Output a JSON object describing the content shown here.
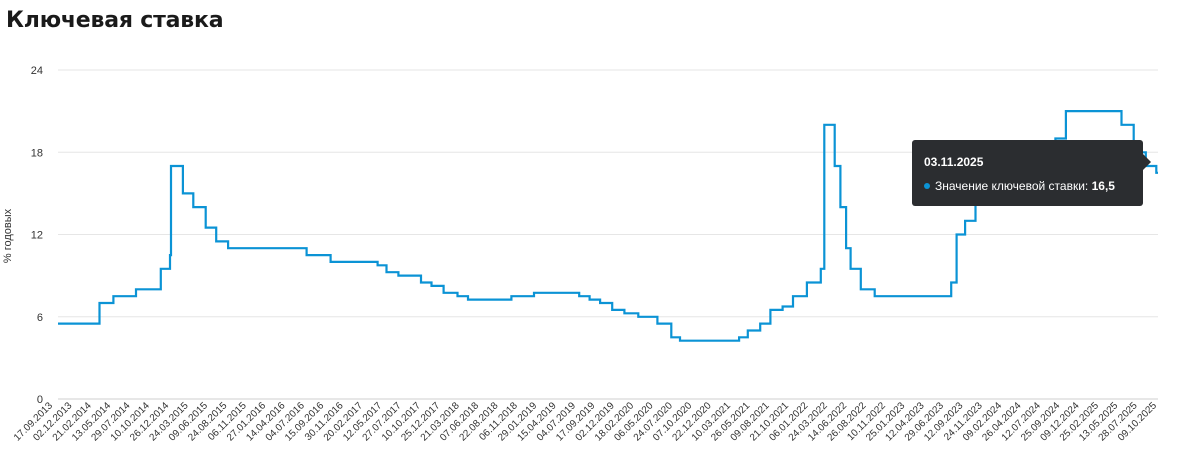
{
  "title": "Ключевая ставка",
  "tooltip": {
    "date": "03.11.2025",
    "label": "Значение ключевой ставки:",
    "value": "16,5",
    "marker_color": "#0b93d5"
  },
  "chart_data": {
    "type": "line",
    "title": "Ключевая ставка",
    "ylabel": "% годовых",
    "xlabel": "",
    "ylim": [
      0,
      24
    ],
    "yticks": [
      0,
      6,
      12,
      18,
      24
    ],
    "grid": true,
    "line_color": "#0b93d5",
    "x_tick_labels": [
      "17.09.2013",
      "02.12.2013",
      "21.02.2014",
      "13.05.2014",
      "29.07.2014",
      "10.10.2014",
      "26.12.2014",
      "24.03.2015",
      "09.06.2015",
      "24.08.2015",
      "06.11.2015",
      "27.01.2016",
      "14.04.2016",
      "04.07.2016",
      "15.09.2016",
      "30.11.2016",
      "20.02.2017",
      "12.05.2017",
      "27.07.2017",
      "10.10.2017",
      "25.12.2017",
      "21.03.2018",
      "07.06.2018",
      "22.08.2018",
      "06.11.2018",
      "29.01.2019",
      "15.04.2019",
      "04.07.2019",
      "17.09.2019",
      "02.12.2019",
      "18.02.2020",
      "06.05.2020",
      "24.07.2020",
      "07.10.2020",
      "22.12.2020",
      "10.03.2021",
      "26.05.2021",
      "09.08.2021",
      "21.10.2021",
      "06.01.2022",
      "24.03.2022",
      "14.06.2022",
      "26.08.2022",
      "10.11.2022",
      "25.01.2023",
      "12.04.2023",
      "29.06.2023",
      "12.09.2023",
      "24.11.2023",
      "09.02.2024",
      "26.04.2024",
      "12.07.2024",
      "25.09.2024",
      "09.12.2024",
      "25.02.2025",
      "13.05.2025",
      "28.07.2025",
      "09.10.2025"
    ],
    "series": [
      {
        "values": [
          [
            "2013-09-17",
            5.5
          ],
          [
            "2014-03-03",
            7.0
          ],
          [
            "2014-04-28",
            7.5
          ],
          [
            "2014-07-28",
            8.0
          ],
          [
            "2014-11-05",
            9.5
          ],
          [
            "2014-12-12",
            10.5
          ],
          [
            "2014-12-16",
            17.0
          ],
          [
            "2015-02-02",
            15.0
          ],
          [
            "2015-03-16",
            14.0
          ],
          [
            "2015-05-05",
            12.5
          ],
          [
            "2015-06-16",
            11.5
          ],
          [
            "2015-08-03",
            11.0
          ],
          [
            "2016-06-14",
            10.5
          ],
          [
            "2016-09-19",
            10.0
          ],
          [
            "2017-03-27",
            9.75
          ],
          [
            "2017-05-02",
            9.25
          ],
          [
            "2017-06-19",
            9.0
          ],
          [
            "2017-09-18",
            8.5
          ],
          [
            "2017-10-30",
            8.25
          ],
          [
            "2017-12-18",
            7.75
          ],
          [
            "2018-02-12",
            7.5
          ],
          [
            "2018-03-26",
            7.25
          ],
          [
            "2018-09-17",
            7.5
          ],
          [
            "2018-12-17",
            7.75
          ],
          [
            "2019-06-17",
            7.5
          ],
          [
            "2019-07-29",
            7.25
          ],
          [
            "2019-09-09",
            7.0
          ],
          [
            "2019-10-28",
            6.5
          ],
          [
            "2019-12-16",
            6.25
          ],
          [
            "2020-02-10",
            6.0
          ],
          [
            "2020-04-27",
            5.5
          ],
          [
            "2020-06-22",
            4.5
          ],
          [
            "2020-07-27",
            4.25
          ],
          [
            "2021-03-22",
            4.5
          ],
          [
            "2021-04-26",
            5.0
          ],
          [
            "2021-06-15",
            5.5
          ],
          [
            "2021-07-26",
            6.5
          ],
          [
            "2021-09-13",
            6.75
          ],
          [
            "2021-10-25",
            7.5
          ],
          [
            "2021-12-20",
            8.5
          ],
          [
            "2022-02-14",
            9.5
          ],
          [
            "2022-02-28",
            20.0
          ],
          [
            "2022-04-11",
            17.0
          ],
          [
            "2022-05-04",
            14.0
          ],
          [
            "2022-05-27",
            11.0
          ],
          [
            "2022-06-14",
            9.5
          ],
          [
            "2022-07-25",
            8.0
          ],
          [
            "2022-09-19",
            7.5
          ],
          [
            "2023-07-24",
            8.5
          ],
          [
            "2023-08-15",
            12.0
          ],
          [
            "2023-09-18",
            13.0
          ],
          [
            "2023-10-30",
            15.0
          ],
          [
            "2023-12-18",
            16.0
          ],
          [
            "2024-07-29",
            18.0
          ],
          [
            "2024-09-16",
            19.0
          ],
          [
            "2024-10-28",
            21.0
          ],
          [
            "2025-06-09",
            20.0
          ],
          [
            "2025-07-28",
            18.0
          ],
          [
            "2025-09-15",
            17.0
          ],
          [
            "2025-10-27",
            16.5
          ],
          [
            "2025-11-03",
            16.5
          ]
        ]
      }
    ]
  }
}
